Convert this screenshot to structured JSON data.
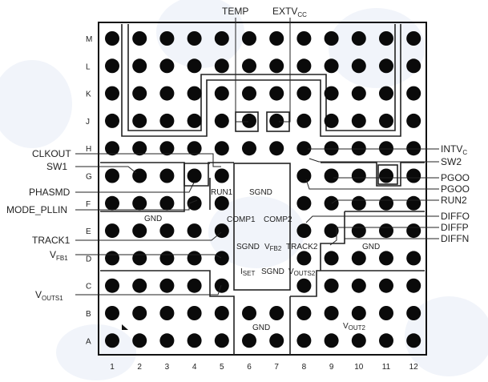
{
  "rows": [
    "M",
    "L",
    "K",
    "J",
    "H",
    "G",
    "F",
    "E",
    "D",
    "C",
    "B",
    "A"
  ],
  "columns": [
    "1",
    "2",
    "3",
    "4",
    "5",
    "6",
    "7",
    "8",
    "9",
    "10",
    "11",
    "12"
  ],
  "missing_balls": [
    "G6",
    "G7",
    "F6",
    "F7",
    "E6",
    "E7",
    "D6",
    "D7",
    "C6",
    "C7"
  ],
  "top_labels": {
    "temp": "TEMP",
    "extvcc_main": "EXTV",
    "extvcc_sub": "CC"
  },
  "left_labels": {
    "clkout": "CLKOUT",
    "sw1": "SW1",
    "phasmd": "PHASMD",
    "mode_pllin": "MODE_PLLIN",
    "track1": "TRACK1",
    "vfb1_main": "V",
    "vfb1_sub": "FB1",
    "vouts1_main": "V",
    "vouts1_sub": "OUTS1"
  },
  "right_labels": {
    "intvcc_main": "INTV",
    "intvcc_sub": "C",
    "sw2": "SW2",
    "pgood1": "PGOO",
    "pgood2": "PGOO",
    "run2": "RUN2",
    "diffo": "DIFFO",
    "diffp": "DIFFP",
    "diffn": "DIFFN"
  },
  "inner_labels": {
    "run1": "RUN1",
    "sgnd_top": "SGND",
    "gnd_left": "GND",
    "comp1": "COMP1",
    "comp2": "COMP2",
    "sgnd_mid": "SGND",
    "vfb2_main": "V",
    "vfb2_sub": "FB2",
    "track2": "TRACK2",
    "gnd_right": "GND",
    "iset_main": "I",
    "iset_sub": "SET",
    "sgnd_low": "SGND",
    "vouts2_main": "V",
    "vouts2_sub": "OUTS2",
    "gnd_bottom": "GND",
    "vout2_main": "V",
    "vout2_sub": "OUT2"
  },
  "colors": {
    "ball": "#0a0a0a",
    "package_border": "#111111",
    "trace": "#222222",
    "watermark": "#9fb3d6"
  }
}
